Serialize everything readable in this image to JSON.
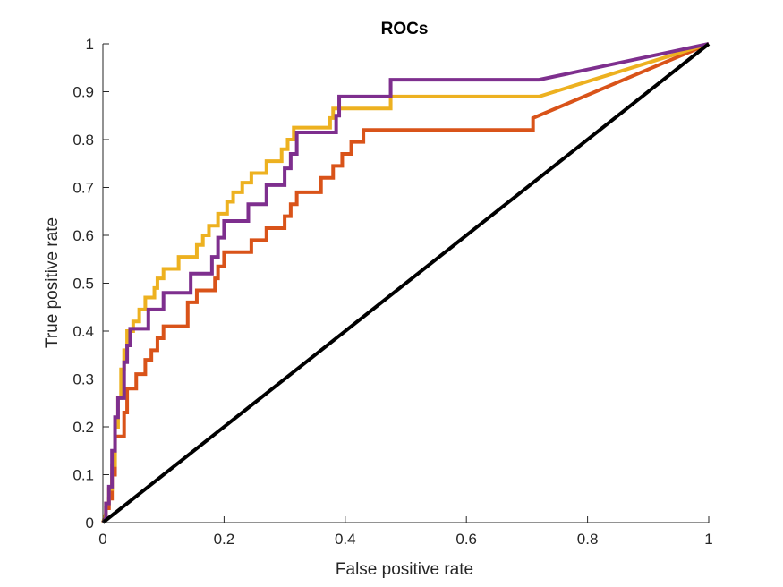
{
  "chart_data": {
    "type": "line",
    "title": "ROCs",
    "xlabel": "False positive rate",
    "ylabel": "True positive rate",
    "xlim": [
      0,
      1
    ],
    "ylim": [
      0,
      1
    ],
    "x_ticks": [
      0,
      0.2,
      0.4,
      0.6,
      0.8,
      1
    ],
    "x_tick_labels": [
      "0",
      "0.2",
      "0.4",
      "0.6",
      "0.8",
      "1"
    ],
    "y_ticks": [
      0,
      0.1,
      0.2,
      0.3,
      0.4,
      0.5,
      0.6,
      0.7,
      0.8,
      0.9,
      1
    ],
    "y_tick_labels": [
      "0",
      "0.1",
      "0.2",
      "0.3",
      "0.4",
      "0.5",
      "0.6",
      "0.7",
      "0.8",
      "0.9",
      "1"
    ],
    "grid": false,
    "legend": "none",
    "series": [
      {
        "color": "#D95319",
        "points": [
          [
            0,
            0
          ],
          [
            0.005,
            0.01
          ],
          [
            0.005,
            0.03
          ],
          [
            0.01,
            0.03
          ],
          [
            0.01,
            0.05
          ],
          [
            0.015,
            0.05
          ],
          [
            0.015,
            0.1
          ],
          [
            0.02,
            0.1
          ],
          [
            0.02,
            0.18
          ],
          [
            0.035,
            0.18
          ],
          [
            0.035,
            0.23
          ],
          [
            0.04,
            0.23
          ],
          [
            0.04,
            0.28
          ],
          [
            0.055,
            0.28
          ],
          [
            0.055,
            0.31
          ],
          [
            0.07,
            0.31
          ],
          [
            0.07,
            0.34
          ],
          [
            0.08,
            0.34
          ],
          [
            0.08,
            0.36
          ],
          [
            0.09,
            0.36
          ],
          [
            0.09,
            0.385
          ],
          [
            0.1,
            0.385
          ],
          [
            0.1,
            0.41
          ],
          [
            0.14,
            0.41
          ],
          [
            0.14,
            0.46
          ],
          [
            0.155,
            0.46
          ],
          [
            0.155,
            0.485
          ],
          [
            0.185,
            0.485
          ],
          [
            0.185,
            0.51
          ],
          [
            0.19,
            0.51
          ],
          [
            0.19,
            0.535
          ],
          [
            0.2,
            0.535
          ],
          [
            0.2,
            0.565
          ],
          [
            0.245,
            0.565
          ],
          [
            0.245,
            0.59
          ],
          [
            0.27,
            0.59
          ],
          [
            0.27,
            0.615
          ],
          [
            0.3,
            0.615
          ],
          [
            0.3,
            0.64
          ],
          [
            0.31,
            0.64
          ],
          [
            0.31,
            0.665
          ],
          [
            0.32,
            0.665
          ],
          [
            0.32,
            0.69
          ],
          [
            0.36,
            0.69
          ],
          [
            0.36,
            0.72
          ],
          [
            0.38,
            0.72
          ],
          [
            0.38,
            0.745
          ],
          [
            0.395,
            0.745
          ],
          [
            0.395,
            0.77
          ],
          [
            0.41,
            0.77
          ],
          [
            0.41,
            0.795
          ],
          [
            0.43,
            0.795
          ],
          [
            0.43,
            0.82
          ],
          [
            0.71,
            0.82
          ],
          [
            0.71,
            0.845
          ],
          [
            1,
            1
          ]
        ]
      },
      {
        "color": "#EDB120",
        "points": [
          [
            0,
            0
          ],
          [
            0.005,
            0.02
          ],
          [
            0.005,
            0.04
          ],
          [
            0.01,
            0.04
          ],
          [
            0.01,
            0.07
          ],
          [
            0.015,
            0.07
          ],
          [
            0.015,
            0.12
          ],
          [
            0.02,
            0.12
          ],
          [
            0.02,
            0.2
          ],
          [
            0.025,
            0.2
          ],
          [
            0.025,
            0.26
          ],
          [
            0.03,
            0.26
          ],
          [
            0.03,
            0.32
          ],
          [
            0.035,
            0.32
          ],
          [
            0.035,
            0.36
          ],
          [
            0.04,
            0.36
          ],
          [
            0.04,
            0.4
          ],
          [
            0.05,
            0.4
          ],
          [
            0.05,
            0.42
          ],
          [
            0.06,
            0.42
          ],
          [
            0.06,
            0.445
          ],
          [
            0.07,
            0.445
          ],
          [
            0.07,
            0.47
          ],
          [
            0.085,
            0.47
          ],
          [
            0.085,
            0.49
          ],
          [
            0.09,
            0.49
          ],
          [
            0.09,
            0.51
          ],
          [
            0.1,
            0.51
          ],
          [
            0.1,
            0.53
          ],
          [
            0.125,
            0.53
          ],
          [
            0.125,
            0.555
          ],
          [
            0.155,
            0.555
          ],
          [
            0.155,
            0.58
          ],
          [
            0.165,
            0.58
          ],
          [
            0.165,
            0.6
          ],
          [
            0.175,
            0.6
          ],
          [
            0.175,
            0.62
          ],
          [
            0.19,
            0.62
          ],
          [
            0.19,
            0.645
          ],
          [
            0.205,
            0.645
          ],
          [
            0.205,
            0.67
          ],
          [
            0.215,
            0.67
          ],
          [
            0.215,
            0.69
          ],
          [
            0.23,
            0.69
          ],
          [
            0.23,
            0.71
          ],
          [
            0.245,
            0.71
          ],
          [
            0.245,
            0.73
          ],
          [
            0.27,
            0.73
          ],
          [
            0.27,
            0.755
          ],
          [
            0.295,
            0.755
          ],
          [
            0.295,
            0.78
          ],
          [
            0.305,
            0.78
          ],
          [
            0.305,
            0.8
          ],
          [
            0.315,
            0.8
          ],
          [
            0.315,
            0.825
          ],
          [
            0.375,
            0.825
          ],
          [
            0.375,
            0.845
          ],
          [
            0.38,
            0.845
          ],
          [
            0.38,
            0.865
          ],
          [
            0.475,
            0.865
          ],
          [
            0.475,
            0.89
          ],
          [
            0.72,
            0.89
          ],
          [
            1,
            1
          ]
        ]
      },
      {
        "color": "#7E2F8E",
        "points": [
          [
            0,
            0
          ],
          [
            0.005,
            0.01
          ],
          [
            0.005,
            0.04
          ],
          [
            0.01,
            0.04
          ],
          [
            0.01,
            0.075
          ],
          [
            0.015,
            0.075
          ],
          [
            0.015,
            0.15
          ],
          [
            0.02,
            0.15
          ],
          [
            0.02,
            0.22
          ],
          [
            0.025,
            0.22
          ],
          [
            0.025,
            0.26
          ],
          [
            0.035,
            0.26
          ],
          [
            0.035,
            0.335
          ],
          [
            0.04,
            0.335
          ],
          [
            0.04,
            0.37
          ],
          [
            0.045,
            0.37
          ],
          [
            0.045,
            0.405
          ],
          [
            0.075,
            0.405
          ],
          [
            0.075,
            0.445
          ],
          [
            0.1,
            0.445
          ],
          [
            0.1,
            0.48
          ],
          [
            0.145,
            0.48
          ],
          [
            0.145,
            0.52
          ],
          [
            0.18,
            0.52
          ],
          [
            0.18,
            0.555
          ],
          [
            0.19,
            0.555
          ],
          [
            0.19,
            0.595
          ],
          [
            0.2,
            0.595
          ],
          [
            0.2,
            0.63
          ],
          [
            0.24,
            0.63
          ],
          [
            0.24,
            0.665
          ],
          [
            0.27,
            0.665
          ],
          [
            0.27,
            0.705
          ],
          [
            0.3,
            0.705
          ],
          [
            0.3,
            0.74
          ],
          [
            0.31,
            0.74
          ],
          [
            0.31,
            0.77
          ],
          [
            0.32,
            0.77
          ],
          [
            0.32,
            0.815
          ],
          [
            0.385,
            0.815
          ],
          [
            0.385,
            0.85
          ],
          [
            0.39,
            0.85
          ],
          [
            0.39,
            0.89
          ],
          [
            0.475,
            0.89
          ],
          [
            0.475,
            0.925
          ],
          [
            0.72,
            0.925
          ],
          [
            1,
            1
          ]
        ]
      },
      {
        "color": "#000000",
        "points": [
          [
            0,
            0
          ],
          [
            1,
            1
          ]
        ]
      }
    ]
  }
}
